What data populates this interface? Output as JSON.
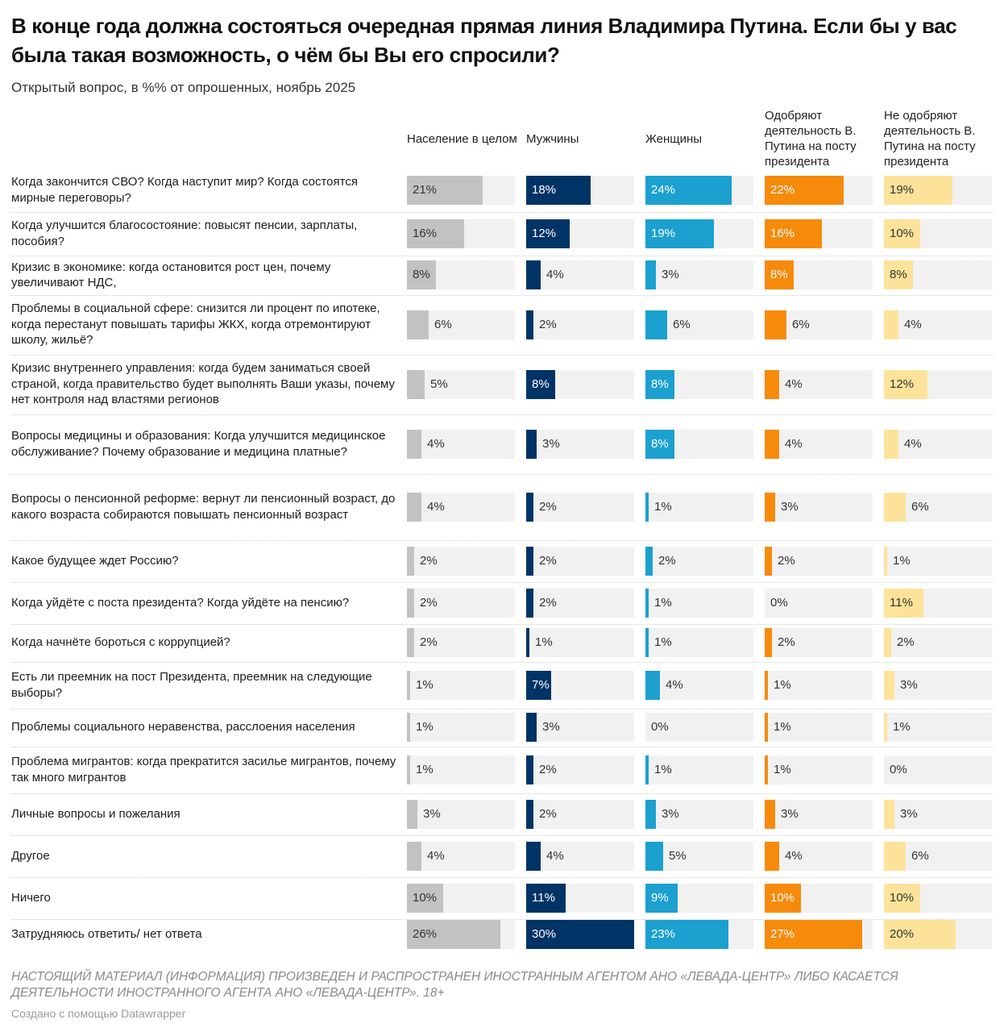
{
  "title": "В конце года должна состояться очередная прямая линия Владимира Путина. Если бы у вас была такая возможность, о чём бы Вы его спросили?",
  "subtitle": "Открытый вопрос, в %% от опрошенных, ноябрь 2025",
  "footer": {
    "disclaimer": "НАСТОЯЩИЙ МАТЕРИАЛ (ИНФОРМАЦИЯ) ПРОИЗВЕДЕН И РАСПРОСТРАНЕН ИНОСТРАННЫМ АГЕНТОМ АНО «ЛЕВАДА-ЦЕНТР» ЛИБО КАСАЕТСЯ ДЕЯТЕЛЬНОСТИ ИНОСТРАННОГО АГЕНТА АНО «ЛЕВАДА-ЦЕНТР». 18+",
    "credit": "Создано с помощью Datawrapper"
  },
  "chart_data": {
    "type": "bar",
    "orientation": "horizontal",
    "layout": "small-multiples-table",
    "title": "В конце года должна состояться очередная прямая линия Владимира Путина. Если бы у вас была такая возможность, о чём бы Вы его спросили?",
    "subtitle": "Открытый вопрос, в %% от опрошенных, ноябрь 2025",
    "unit": "%",
    "xlim": [
      0,
      30
    ],
    "grid": false,
    "categories": [
      "Когда закончится СВО? Когда наступит мир? Когда состоятся мирные переговоры?",
      "Когда улучшится благосостояние: повысят пенсии, зарплаты, пособия?",
      "Кризис в экономике: когда остановится рост цен, почему увеличивают НДС,",
      "Проблемы в социальной сфере: снизится ли процент по ипотеке, когда перестанут повышать тарифы ЖКХ, когда отремонтируют школу, жильё?",
      "Кризис внутреннего управления: когда будем заниматься своей страной, когда правительство будет выполнять Ваши указы, почему нет контроля над властями регионов",
      "Вопросы медицины и образования: Когда улучшится медицинское обслуживание? Почему образование и медицина платные?",
      "Вопросы о пенсионной реформе: вернут ли пенсионный возраст, до какого возраста собираются повышать пенсионный возраст",
      "Какое будущее ждет Россию?",
      "Когда уйдёте с поста президента? Когда уйдёте на пенсию?",
      "Когда начнёте бороться с коррупцией?",
      "Есть ли преемник на пост Президента, преемник на следующие выборы?",
      "Проблемы социального неравенства, расслоения населения",
      "Проблема мигрантов: когда прекратится засилье мигрантов, почему так много мигрантов",
      "Личные вопросы и пожелания",
      "Другое",
      "Ничего",
      "Затрудняюсь ответить/ нет ответа"
    ],
    "series": [
      {
        "name": "Население в целом",
        "color": "#c2c2c2",
        "label_color_inside": "#333333",
        "values": [
          21,
          16,
          8,
          6,
          5,
          4,
          4,
          2,
          2,
          2,
          1,
          1,
          1,
          3,
          4,
          10,
          26
        ]
      },
      {
        "name": "Мужчины",
        "color": "#003366",
        "label_color_inside": "#ffffff",
        "values": [
          18,
          12,
          4,
          2,
          8,
          3,
          2,
          2,
          2,
          1,
          7,
          3,
          2,
          2,
          4,
          11,
          30
        ]
      },
      {
        "name": "Женщины",
        "color": "#1ba0d0",
        "label_color_inside": "#ffffff",
        "values": [
          24,
          19,
          3,
          6,
          8,
          8,
          1,
          2,
          1,
          1,
          4,
          0,
          1,
          3,
          5,
          9,
          23
        ]
      },
      {
        "name": "Одобряют деятельность В. Путина на посту президента",
        "color": "#f68a0a",
        "label_color_inside": "#ffffff",
        "values": [
          22,
          16,
          8,
          6,
          4,
          4,
          3,
          2,
          0,
          2,
          1,
          1,
          1,
          3,
          4,
          10,
          27
        ]
      },
      {
        "name": "Не одобряют деятельность В. Путина на посту президента",
        "color": "#fde39a",
        "label_color_inside": "#333333",
        "values": [
          19,
          10,
          8,
          4,
          12,
          4,
          6,
          1,
          11,
          2,
          3,
          1,
          0,
          3,
          6,
          10,
          20
        ]
      }
    ]
  }
}
